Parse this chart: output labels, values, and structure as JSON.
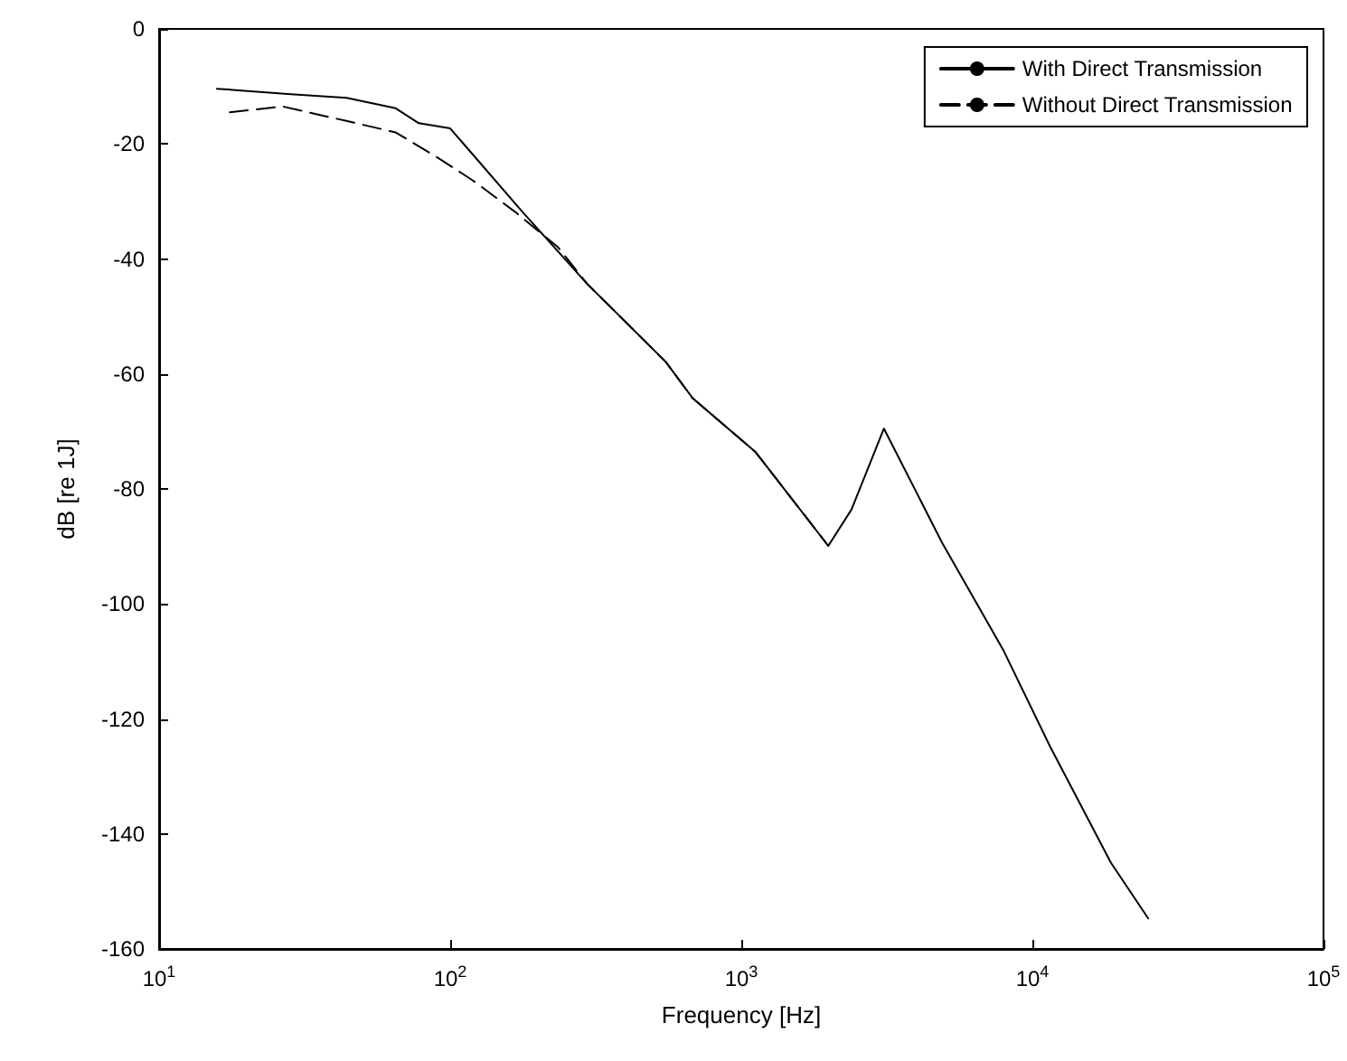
{
  "chart_data": {
    "type": "line",
    "xlabel": "Frequency [Hz]",
    "ylabel": "dB [re 1J]",
    "log": "x",
    "xlim": [
      10,
      100000
    ],
    "xticks": [
      {
        "value": 10,
        "label": "10$^{1}$"
      },
      {
        "value": 100,
        "label": "10$^{2}$"
      },
      {
        "value": 1000,
        "label": "10$^{3}$"
      },
      {
        "value": 10000,
        "label": "10$^{4}$"
      },
      {
        "value": 100000,
        "label": "10$^{5}$"
      }
    ],
    "ylim": [
      -160,
      0
    ],
    "yticks": [
      -160,
      -140,
      -120,
      -100,
      -80,
      -60,
      -40,
      -20,
      0
    ],
    "grid": false,
    "legend": "top right",
    "marker": "none",
    "series": [
      {
        "name": "With Direct Transmission",
        "color": "#000000",
        "line_style": "solid",
        "x": [
          15.8,
          27.6,
          44,
          65,
          78,
          100,
          177,
          295,
          550,
          680,
          1120,
          1990,
          2390,
          3090,
          4890,
          7940,
          11500,
          18600,
          25000
        ],
        "values": [
          -10.4,
          -11.3,
          -12,
          -13.8,
          -16.4,
          -17.3,
          -31.8,
          -44.3,
          -57.9,
          -64.2,
          -73.6,
          -89.9,
          -83.6,
          -69.5,
          -89.3,
          -108,
          -124.8,
          -145,
          -154.7
        ]
      },
      {
        "name": "Without Direct Transmission",
        "color": "#000000",
        "line_style": "dashed",
        "x": [
          17.5,
          26.6,
          44,
          65,
          90,
          120,
          167,
          235,
          295,
          550,
          680,
          1120,
          1990
        ],
        "values": [
          -14.5,
          -13.5,
          -16,
          -18,
          -22.3,
          -26.4,
          -31.8,
          -38,
          -44.3,
          -57.9,
          -64.2,
          -73.6,
          -89.9
        ]
      }
    ]
  }
}
